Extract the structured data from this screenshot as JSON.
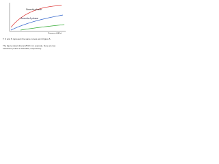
{
  "figure": {
    "labels": [
      "Smectic phase",
      "Smectic A phase"
    ],
    "x_label": "Pressure (MPa)"
  },
  "text": {
    "lines": [
      "T, S and N represent the same curves as in Figure 5.",
      "The figure shows that at 253 K, for example, there are two",
      "transitions points at 750 MPa, respectively."
    ]
  }
}
